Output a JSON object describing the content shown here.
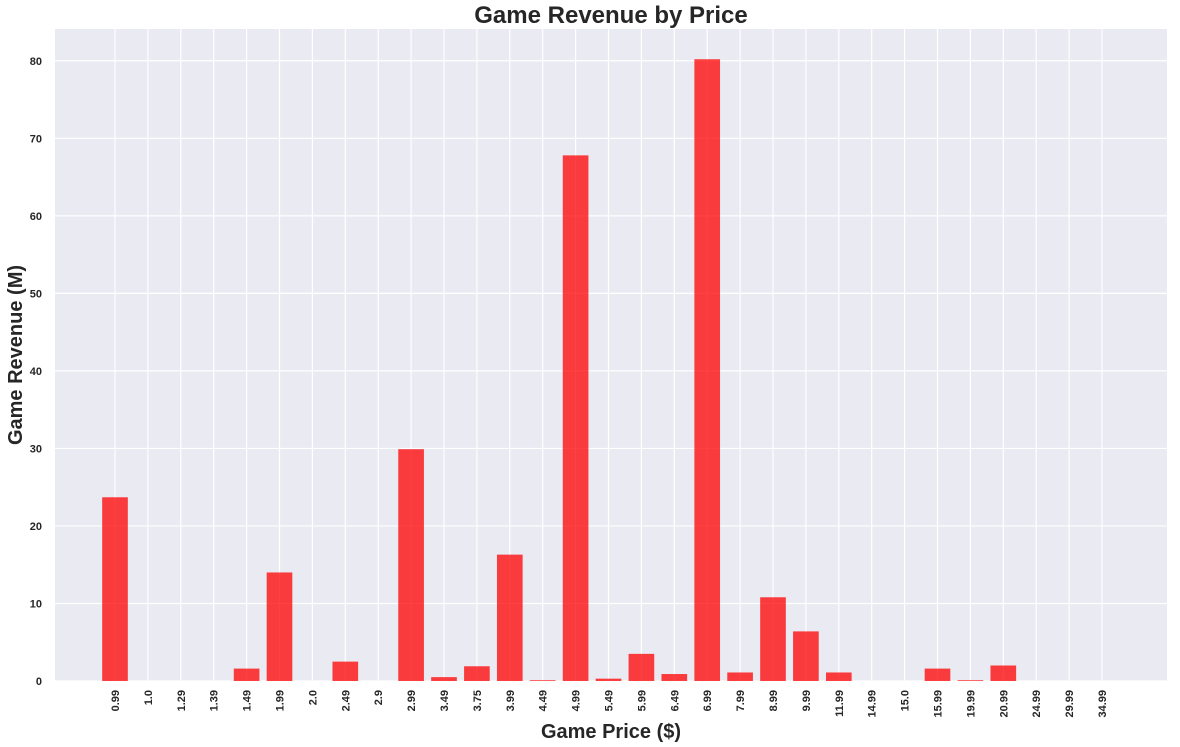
{
  "chart_data": {
    "type": "bar",
    "title": "Game Revenue by Price",
    "xlabel": "Game Price ($)",
    "ylabel": "Game Revenue (M)",
    "categories": [
      "0.99",
      "1.0",
      "1.29",
      "1.39",
      "1.49",
      "1.99",
      "2.0",
      "2.49",
      "2.9",
      "2.99",
      "3.49",
      "3.75",
      "3.99",
      "4.49",
      "4.99",
      "5.49",
      "5.99",
      "6.49",
      "6.99",
      "7.99",
      "8.99",
      "9.99",
      "11.99",
      "14.99",
      "15.0",
      "15.99",
      "19.99",
      "20.99",
      "24.99",
      "29.99",
      "34.99"
    ],
    "values": [
      23.7,
      0,
      0,
      0,
      1.6,
      14.0,
      0,
      2.5,
      0,
      29.9,
      0.5,
      1.9,
      16.3,
      0.1,
      67.8,
      0.3,
      3.5,
      0.9,
      80.2,
      1.1,
      10.8,
      6.4,
      1.1,
      0,
      0,
      1.6,
      0.1,
      2.0,
      0,
      0,
      0
    ],
    "yticks": [
      0,
      10,
      20,
      30,
      40,
      50,
      60,
      70,
      80
    ],
    "ylim": [
      0,
      84.1
    ],
    "grid": true,
    "colors": {
      "bar": "#ff0000",
      "bar_opacity": 0.75,
      "plot_background": "#eaeaf2",
      "grid": "#ffffff"
    }
  }
}
